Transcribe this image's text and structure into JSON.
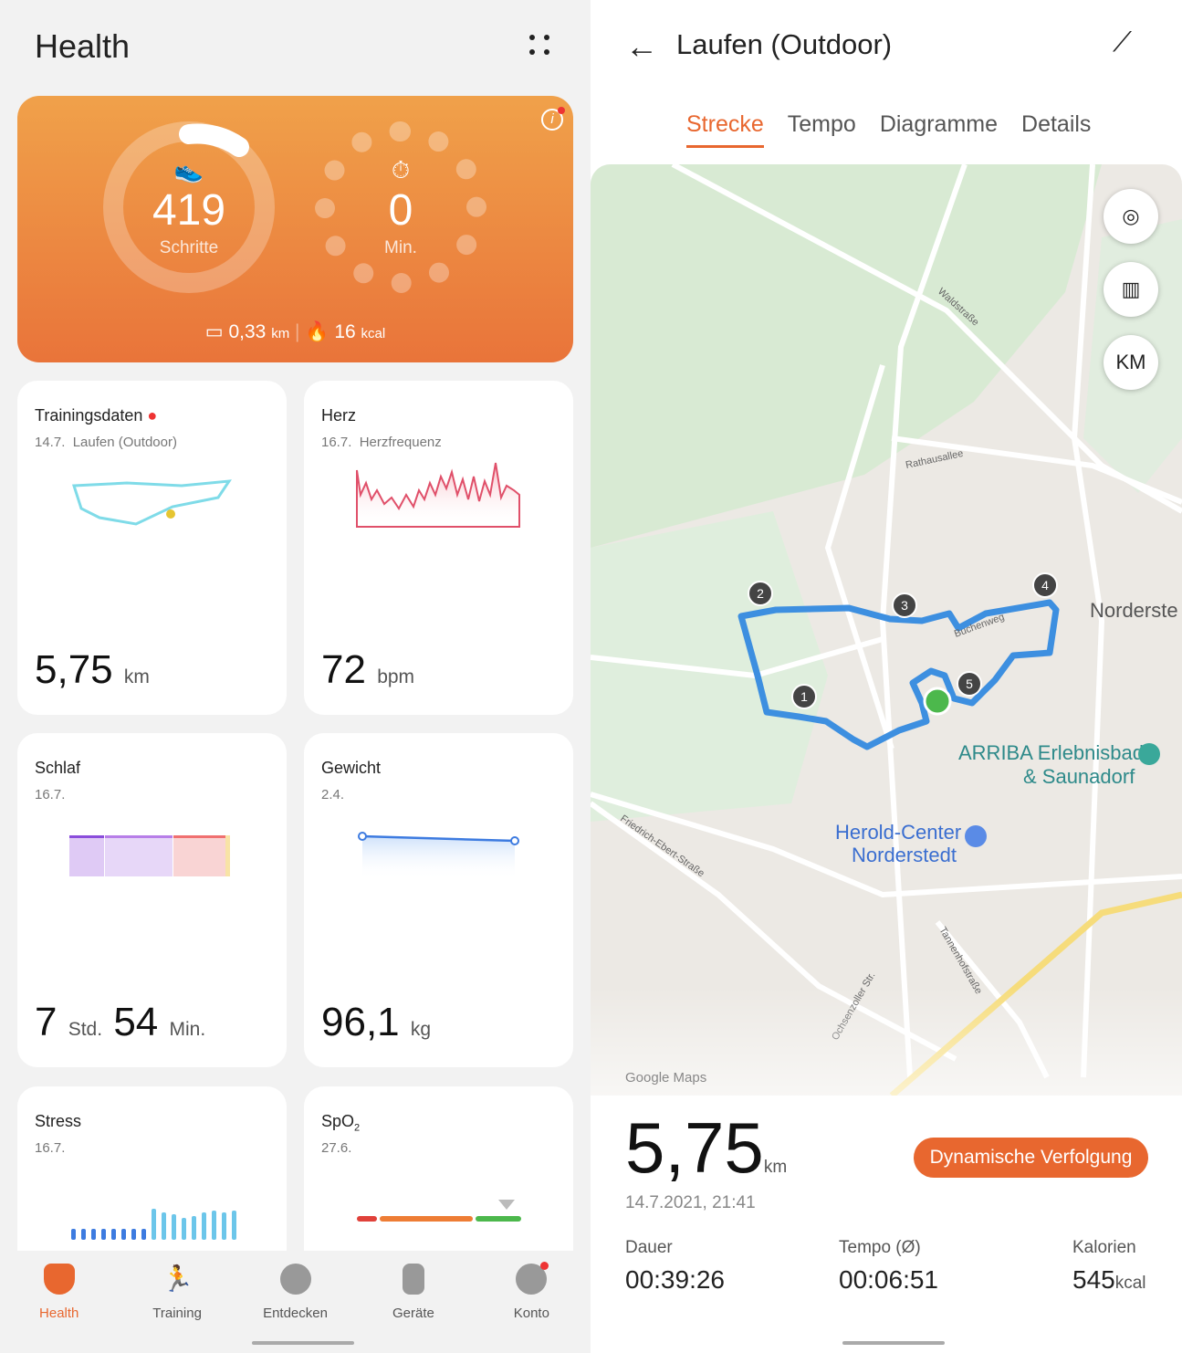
{
  "left": {
    "app_title": "Health",
    "hero": {
      "steps": "419",
      "steps_label": "Schritte",
      "minutes": "0",
      "minutes_label": "Min.",
      "distance": "0,33",
      "distance_unit": "km",
      "calories": "16",
      "calories_unit": "kcal",
      "steps_goal_fraction": 0.07
    },
    "cards": {
      "training": {
        "title": "Trainingsdaten",
        "date": "14.7.",
        "subtitle": "Laufen (Outdoor)",
        "value": "5,75",
        "unit": "km"
      },
      "heart": {
        "title": "Herz",
        "date": "16.7.",
        "subtitle": "Herzfrequenz",
        "value": "72",
        "unit": "bpm"
      },
      "sleep": {
        "title": "Schlaf",
        "date": "16.7.",
        "hours": "7",
        "hours_unit": "Std.",
        "minutes": "54",
        "minutes_unit": "Min."
      },
      "weight": {
        "title": "Gewicht",
        "date": "2.4.",
        "value": "96,1",
        "unit": "kg"
      },
      "stress": {
        "title": "Stress",
        "date": "16.7."
      },
      "spo2": {
        "title": "SpO",
        "title_sub": "2",
        "date": "27.6."
      }
    },
    "nav": [
      {
        "label": "Health",
        "active": true
      },
      {
        "label": "Training"
      },
      {
        "label": "Entdecken"
      },
      {
        "label": "Geräte"
      },
      {
        "label": "Konto"
      }
    ]
  },
  "right": {
    "title": "Laufen (Outdoor)",
    "tabs": [
      "Strecke",
      "Tempo",
      "Diagramme",
      "Details"
    ],
    "active_tab": "Strecke",
    "map": {
      "km_button": "KM",
      "markers": [
        "1",
        "2",
        "3",
        "4",
        "5"
      ],
      "streets": [
        "Waldstraße",
        "Rathausallee",
        "Buchenweg",
        "Friedrich-Ebert-Straße",
        "Tannenhofstraße",
        "Ochsenzoller Str."
      ],
      "places": [
        "Norderste",
        "ARRIBA Erlebnisbad",
        "& Saunadorf",
        "Herold-Center",
        "Norderstedt"
      ],
      "attribution": "Google Maps"
    },
    "summary": {
      "distance": "5,75",
      "unit": "km",
      "datetime": "14.7.2021, 21:41",
      "button": "Dynamische Verfolgung",
      "stats": [
        {
          "label": "Dauer",
          "value": "00:39:26",
          "unit": ""
        },
        {
          "label": "Tempo (Ø)",
          "value": "00:06:51",
          "unit": ""
        },
        {
          "label": "Kalorien",
          "value": "545",
          "unit": "kcal"
        }
      ]
    },
    "colors": {
      "accent": "#e8672f",
      "route": "#3d8fe0"
    }
  }
}
